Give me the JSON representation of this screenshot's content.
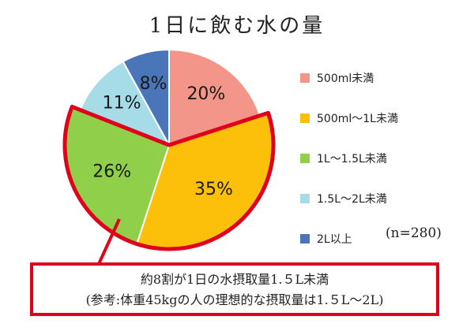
{
  "chart_data": {
    "type": "pie",
    "title": "1日に飲む水の量",
    "categories": [
      "500ml未満",
      "500ml～1L未満",
      "1L～1.5L未満",
      "1.5L～2L未満",
      "2L以上"
    ],
    "values": [
      20,
      35,
      26,
      11,
      8
    ],
    "value_labels": [
      "20%",
      "35%",
      "26%",
      "11%",
      "8%"
    ],
    "colors": [
      "#f4958a",
      "#fcc00a",
      "#8fcf4a",
      "#a6dbe8",
      "#4a75b8"
    ],
    "highlight_color": "#e0001b",
    "highlighted_categories": [
      "500ml～1L未満",
      "1L～1.5L未満"
    ],
    "legend_position": "right",
    "sample_size": "(n=280)"
  },
  "note": {
    "line1": "約8割が1日の水摂取量1.５L未満",
    "line2": "(参考:体重45kgの人の理想的な摂取量は1.５L～2L)"
  }
}
